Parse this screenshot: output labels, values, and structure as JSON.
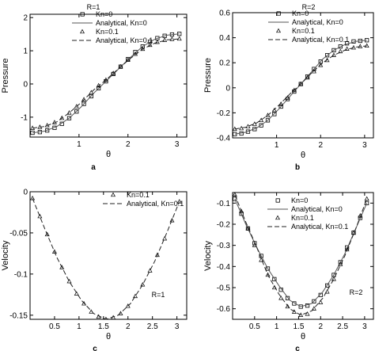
{
  "chart_data": [
    {
      "type": "line",
      "panel_label": "a",
      "annotation": "R=1",
      "xlabel": "θ",
      "ylabel": "Pressure",
      "xlim": [
        0,
        3.2
      ],
      "ylim": [
        -1.6,
        2.1
      ],
      "xticks": [
        1,
        2,
        3
      ],
      "xtick_labels": [
        "1",
        "2",
        "3"
      ],
      "yticks": [
        -1,
        0,
        1,
        2
      ],
      "ytick_labels": [
        "-1",
        "0",
        "1",
        "2"
      ],
      "legend_position": "top-right",
      "series": [
        {
          "name": "Kn=0",
          "style": "square-markers",
          "x": [
            0.05,
            0.2,
            0.35,
            0.5,
            0.65,
            0.8,
            0.95,
            1.1,
            1.25,
            1.4,
            1.55,
            1.7,
            1.85,
            2.0,
            2.15,
            2.3,
            2.45,
            2.6,
            2.75,
            2.9,
            3.05
          ],
          "y": [
            -1.47,
            -1.45,
            -1.4,
            -1.32,
            -1.2,
            -1.03,
            -0.83,
            -0.6,
            -0.37,
            -0.13,
            0.08,
            0.3,
            0.52,
            0.75,
            0.96,
            1.13,
            1.27,
            1.38,
            1.45,
            1.49,
            1.51
          ]
        },
        {
          "name": "Analytical, Kn=0",
          "style": "solid",
          "x": [
            0.05,
            0.3,
            0.55,
            0.8,
            1.05,
            1.3,
            1.55,
            1.8,
            2.05,
            2.3,
            2.55,
            2.8,
            3.05
          ],
          "y": [
            -1.47,
            -1.42,
            -1.28,
            -1.03,
            -0.68,
            -0.28,
            0.08,
            0.44,
            0.8,
            1.13,
            1.35,
            1.47,
            1.51
          ]
        },
        {
          "name": "Kn=0.1",
          "style": "triangle-markers",
          "x": [
            0.05,
            0.2,
            0.35,
            0.5,
            0.65,
            0.8,
            0.95,
            1.1,
            1.25,
            1.4,
            1.55,
            1.7,
            1.85,
            2.0,
            2.15,
            2.3,
            2.45,
            2.6,
            2.75,
            2.9,
            3.05
          ],
          "y": [
            -1.33,
            -1.3,
            -1.25,
            -1.16,
            -1.03,
            -0.87,
            -0.68,
            -0.47,
            -0.26,
            -0.05,
            0.12,
            0.32,
            0.52,
            0.72,
            0.9,
            1.05,
            1.17,
            1.26,
            1.32,
            1.35,
            1.36
          ]
        },
        {
          "name": "Analytical, Kn=0.1",
          "style": "dashed",
          "x": [
            0.05,
            0.3,
            0.55,
            0.8,
            1.05,
            1.3,
            1.55,
            1.8,
            2.05,
            2.3,
            2.55,
            2.8,
            3.05
          ],
          "y": [
            -1.33,
            -1.28,
            -1.14,
            -0.87,
            -0.55,
            -0.18,
            0.12,
            0.45,
            0.77,
            1.05,
            1.23,
            1.33,
            1.36
          ]
        }
      ]
    },
    {
      "type": "line",
      "panel_label": "b",
      "annotation": "R=2",
      "xlabel": "θ",
      "ylabel": "Pressure",
      "xlim": [
        0,
        3.2
      ],
      "ylim": [
        -0.4,
        0.6
      ],
      "xticks": [
        1,
        2,
        3
      ],
      "xtick_labels": [
        "1",
        "2",
        "3"
      ],
      "yticks": [
        -0.4,
        -0.2,
        0,
        0.2,
        0.4,
        0.6
      ],
      "ytick_labels": [
        "-0.4",
        "-0.2",
        "0",
        "0.2",
        "0.4",
        "0.6"
      ],
      "legend_position": "top-right",
      "series": [
        {
          "name": "Kn=0",
          "style": "square-markers",
          "x": [
            0.05,
            0.2,
            0.35,
            0.5,
            0.65,
            0.8,
            0.95,
            1.1,
            1.25,
            1.4,
            1.55,
            1.7,
            1.85,
            2.0,
            2.15,
            2.3,
            2.45,
            2.6,
            2.75,
            2.9,
            3.05
          ],
          "y": [
            -0.37,
            -0.365,
            -0.35,
            -0.33,
            -0.3,
            -0.26,
            -0.21,
            -0.15,
            -0.09,
            -0.03,
            0.03,
            0.09,
            0.15,
            0.21,
            0.26,
            0.3,
            0.33,
            0.355,
            0.37,
            0.375,
            0.38
          ]
        },
        {
          "name": "Analytical, Kn=0",
          "style": "solid",
          "x": [
            0.05,
            0.3,
            0.55,
            0.8,
            1.05,
            1.3,
            1.55,
            1.8,
            2.05,
            2.3,
            2.55,
            2.8,
            3.05
          ],
          "y": [
            -0.37,
            -0.355,
            -0.32,
            -0.26,
            -0.17,
            -0.07,
            0.03,
            0.13,
            0.23,
            0.3,
            0.345,
            0.37,
            0.38
          ]
        },
        {
          "name": "Kn=0.1",
          "style": "triangle-markers",
          "x": [
            0.05,
            0.2,
            0.35,
            0.5,
            0.65,
            0.8,
            0.95,
            1.1,
            1.25,
            1.4,
            1.55,
            1.7,
            1.85,
            2.0,
            2.15,
            2.3,
            2.45,
            2.6,
            2.75,
            2.9,
            3.05
          ],
          "y": [
            -0.33,
            -0.325,
            -0.31,
            -0.29,
            -0.26,
            -0.22,
            -0.18,
            -0.13,
            -0.08,
            -0.02,
            0.03,
            0.08,
            0.13,
            0.18,
            0.22,
            0.26,
            0.29,
            0.31,
            0.32,
            0.33,
            0.335
          ]
        },
        {
          "name": "Analytical, Kn=0.1",
          "style": "dashed",
          "x": [
            0.05,
            0.3,
            0.55,
            0.8,
            1.05,
            1.3,
            1.55,
            1.8,
            2.05,
            2.3,
            2.55,
            2.8,
            3.05
          ],
          "y": [
            -0.33,
            -0.315,
            -0.28,
            -0.22,
            -0.14,
            -0.05,
            0.03,
            0.12,
            0.2,
            0.26,
            0.3,
            0.325,
            0.335
          ]
        }
      ]
    },
    {
      "type": "line",
      "panel_label": "c",
      "annotation": "R=1",
      "xlabel": "θ",
      "ylabel": "Velocity",
      "xlim": [
        0,
        3.2
      ],
      "ylim": [
        -0.155,
        0
      ],
      "xticks": [
        0.5,
        1,
        1.5,
        2,
        2.5,
        3
      ],
      "xtick_labels": [
        "0.5",
        "1",
        "1.5",
        "2",
        "2.5",
        "3"
      ],
      "yticks": [
        -0.15,
        -0.1,
        -0.05,
        0
      ],
      "ytick_labels": [
        "-0.15",
        "-0.1",
        "-0.05",
        "0"
      ],
      "legend_position": "top-center",
      "series": [
        {
          "name": "Kn=0.1",
          "style": "triangle-markers",
          "x": [
            0.05,
            0.2,
            0.35,
            0.5,
            0.65,
            0.8,
            0.95,
            1.1,
            1.25,
            1.4,
            1.55,
            1.7,
            1.85,
            2.0,
            2.15,
            2.3,
            2.45,
            2.6,
            2.75,
            2.9,
            3.05
          ],
          "y": [
            -0.008,
            -0.03,
            -0.052,
            -0.073,
            -0.092,
            -0.109,
            -0.124,
            -0.136,
            -0.146,
            -0.152,
            -0.155,
            -0.153,
            -0.148,
            -0.139,
            -0.127,
            -0.113,
            -0.096,
            -0.077,
            -0.057,
            -0.035,
            -0.012
          ]
        },
        {
          "name": "Analytical, Kn=0.1",
          "style": "dashed",
          "x": [
            0.05,
            0.3,
            0.55,
            0.8,
            1.05,
            1.3,
            1.55,
            1.8,
            2.05,
            2.3,
            2.55,
            2.8,
            3.05
          ],
          "y": [
            -0.008,
            -0.045,
            -0.08,
            -0.109,
            -0.132,
            -0.148,
            -0.155,
            -0.15,
            -0.136,
            -0.113,
            -0.084,
            -0.049,
            -0.012
          ]
        }
      ]
    },
    {
      "type": "line",
      "panel_label": "c",
      "annotation": "R=2",
      "xlabel": "θ",
      "ylabel": "Velocity",
      "xlim": [
        0,
        3.2
      ],
      "ylim": [
        -0.65,
        -0.05
      ],
      "xticks": [
        0.5,
        1,
        1.5,
        2,
        2.5,
        3
      ],
      "xtick_labels": [
        "0.5",
        "1",
        "1.5",
        "2",
        "2.5",
        "3"
      ],
      "yticks": [
        -0.6,
        -0.5,
        -0.4,
        -0.3,
        -0.2,
        -0.1
      ],
      "ytick_labels": [
        "-0.6",
        "-0.5",
        "-0.4",
        "-0.3",
        "-0.2",
        "-0.1"
      ],
      "legend_position": "top-center",
      "series": [
        {
          "name": "Kn=0",
          "style": "square-markers",
          "x": [
            0.05,
            0.2,
            0.35,
            0.5,
            0.65,
            0.8,
            0.95,
            1.1,
            1.25,
            1.4,
            1.55,
            1.7,
            1.85,
            2.0,
            2.15,
            2.3,
            2.45,
            2.6,
            2.75,
            2.9,
            3.05
          ],
          "y": [
            -0.08,
            -0.15,
            -0.22,
            -0.29,
            -0.35,
            -0.41,
            -0.46,
            -0.51,
            -0.55,
            -0.575,
            -0.59,
            -0.585,
            -0.565,
            -0.535,
            -0.49,
            -0.44,
            -0.38,
            -0.31,
            -0.24,
            -0.17,
            -0.1
          ]
        },
        {
          "name": "Analytical, Kn=0",
          "style": "solid",
          "x": [
            0.05,
            0.3,
            0.55,
            0.8,
            1.05,
            1.3,
            1.55,
            1.8,
            2.05,
            2.3,
            2.55,
            2.8,
            3.05
          ],
          "y": [
            -0.08,
            -0.2,
            -0.31,
            -0.41,
            -0.49,
            -0.56,
            -0.59,
            -0.575,
            -0.52,
            -0.44,
            -0.34,
            -0.22,
            -0.1
          ]
        },
        {
          "name": "Kn=0.1",
          "style": "triangle-markers",
          "x": [
            0.05,
            0.2,
            0.35,
            0.5,
            0.65,
            0.8,
            0.95,
            1.1,
            1.25,
            1.4,
            1.55,
            1.7,
            1.85,
            2.0,
            2.15,
            2.3,
            2.45,
            2.6,
            2.75,
            2.9,
            3.05
          ],
          "y": [
            -0.06,
            -0.14,
            -0.22,
            -0.3,
            -0.37,
            -0.44,
            -0.5,
            -0.55,
            -0.59,
            -0.615,
            -0.63,
            -0.625,
            -0.6,
            -0.57,
            -0.52,
            -0.46,
            -0.39,
            -0.32,
            -0.24,
            -0.16,
            -0.08
          ]
        },
        {
          "name": "Analytical, Kn=0.1",
          "style": "dashed",
          "x": [
            0.05,
            0.3,
            0.55,
            0.8,
            1.05,
            1.3,
            1.55,
            1.8,
            2.05,
            2.3,
            2.55,
            2.8,
            3.05
          ],
          "y": [
            -0.06,
            -0.19,
            -0.31,
            -0.44,
            -0.53,
            -0.6,
            -0.63,
            -0.61,
            -0.55,
            -0.46,
            -0.35,
            -0.22,
            -0.08
          ]
        }
      ]
    }
  ]
}
